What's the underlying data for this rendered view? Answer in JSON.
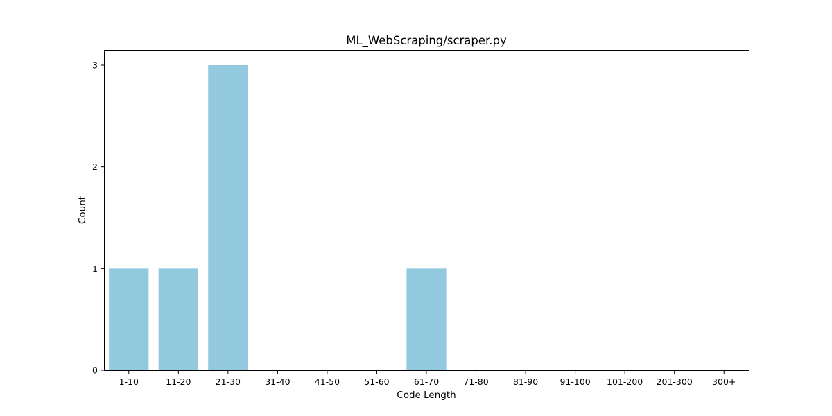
{
  "chart_data": {
    "type": "bar",
    "title": "ML_WebScraping/scraper.py",
    "xlabel": "Code Length",
    "ylabel": "Count",
    "categories": [
      "1-10",
      "11-20",
      "21-30",
      "31-40",
      "41-50",
      "51-60",
      "61-70",
      "71-80",
      "81-90",
      "91-100",
      "101-200",
      "201-300",
      "300+"
    ],
    "values": [
      1,
      1,
      3,
      0,
      0,
      0,
      1,
      0,
      0,
      0,
      0,
      0,
      0
    ],
    "yticks": [
      0,
      1,
      2,
      3
    ],
    "ylim": [
      0,
      3.15
    ],
    "grid": false,
    "legend": "none",
    "bar_color": "#92c9df",
    "axis_color": "#000000",
    "background": "#ffffff"
  }
}
